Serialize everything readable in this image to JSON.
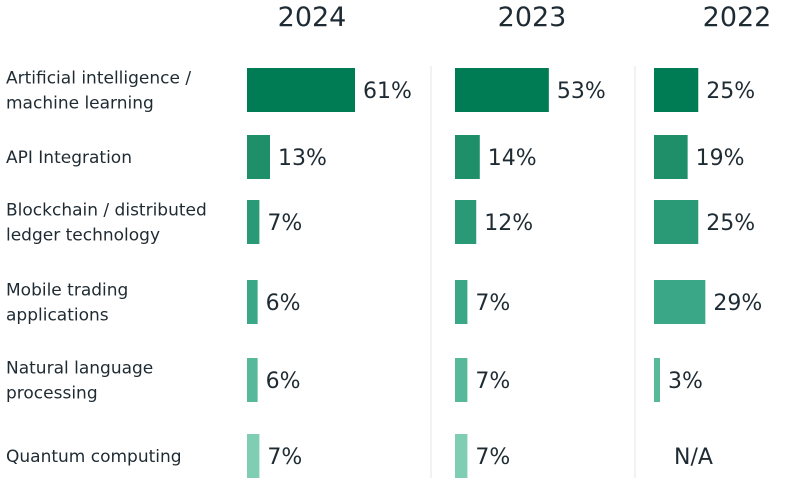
{
  "chart_data": {
    "type": "bar",
    "orientation": "horizontal",
    "layout": "small-multiples",
    "xlim": [
      0,
      61
    ],
    "categories": [
      [
        "Artificial intelligence /",
        "machine learning"
      ],
      [
        "API Integration"
      ],
      [
        "Blockchain / distributed",
        "ledger technology"
      ],
      [
        "Mobile trading",
        "applications"
      ],
      [
        "Natural language",
        "processing"
      ],
      [
        "Quantum computing"
      ]
    ],
    "series": [
      {
        "name": "2024",
        "values": [
          61,
          13,
          7,
          6,
          6,
          7
        ],
        "labels": [
          "61%",
          "13%",
          "7%",
          "6%",
          "6%",
          "7%"
        ]
      },
      {
        "name": "2023",
        "values": [
          53,
          14,
          12,
          7,
          7,
          7
        ],
        "labels": [
          "53%",
          "14%",
          "12%",
          "7%",
          "7%",
          "7%"
        ]
      },
      {
        "name": "2022",
        "values": [
          25,
          19,
          25,
          29,
          3,
          null
        ],
        "labels": [
          "25%",
          "19%",
          "25%",
          "29%",
          "3%",
          "N/A"
        ]
      }
    ],
    "row_colors": [
      "#007c55",
      "#1f8f6a",
      "#2a9a76",
      "#3aa887",
      "#58b99a",
      "#7fceb4"
    ],
    "color_by": "row",
    "grid": false,
    "legend": "none"
  }
}
